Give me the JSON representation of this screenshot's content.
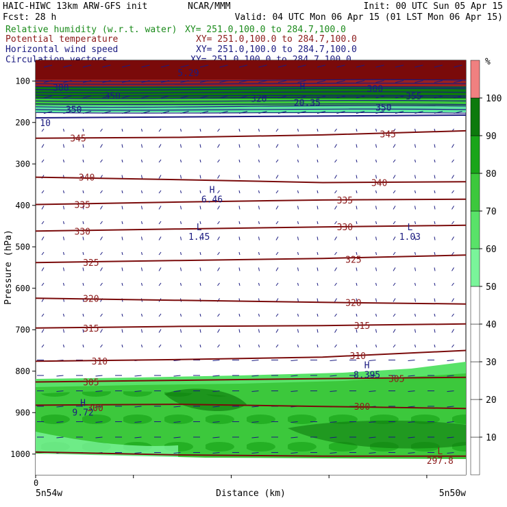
{
  "header": {
    "model_line": "HAIC-HIWC 13km ARW-GFS init",
    "org": "NCAR/MMM",
    "init": "Init: 00 UTC Sun 05 Apr 15",
    "fcst": "Fcst:    28 h",
    "valid": "Valid: 04 UTC Mon 06 Apr 15 (01 LST Mon 06 Apr 15)"
  },
  "fields": [
    {
      "name": "Relative humidity (w.r.t. water)",
      "xy": "XY= 251.0,100.0 to 284.7,100.0",
      "color": "#1a8a1a"
    },
    {
      "name": "Potential temperature",
      "xy": "XY= 251.0,100.0 to 284.7,100.0",
      "color": "#8b1a1a"
    },
    {
      "name": "Horizontal wind speed",
      "xy": "XY= 251.0,100.0 to 284.7,100.0",
      "color": "#1a1a80"
    },
    {
      "name": "Circulation vectors",
      "xy": "XY= 251.0,100.0 to 284.7,100.0",
      "color": "#1a1a80"
    }
  ],
  "chart_data": {
    "type": "contour",
    "ylabel": "Pressure (hPa)",
    "xlabel": "Distance (km)",
    "yticks": [
      100,
      200,
      300,
      400,
      500,
      600,
      700,
      800,
      900,
      1000
    ],
    "ylim": [
      50,
      1050
    ],
    "y_scale": "linear",
    "x_tick_label": "0",
    "x_start_label": "5n54w",
    "x_end_label": "5n50w",
    "colorbar": {
      "unit": "%",
      "levels": [
        10,
        20,
        30,
        40,
        50,
        60,
        70,
        80,
        90,
        100
      ],
      "fill_colors": [
        "#ffffff",
        "#ffffff",
        "#ffffff",
        "#ffffff",
        "#ffffff",
        "#7af59a",
        "#59e269",
        "#3cc83c",
        "#1aa51a",
        "#0d7a0d",
        "#f08080"
      ]
    },
    "theta_contours": [
      {
        "value": "345",
        "pressure": [
          238,
          236,
          230,
          220
        ]
      },
      {
        "value": "340",
        "pressure": [
          332,
          338,
          345,
          343
        ]
      },
      {
        "value": "335",
        "pressure": [
          398,
          392,
          387,
          385
        ]
      },
      {
        "value": "330",
        "pressure": [
          462,
          457,
          452,
          448
        ]
      },
      {
        "value": "325",
        "pressure": [
          538,
          533,
          528,
          520
        ]
      },
      {
        "value": "320",
        "pressure": [
          624,
          629,
          634,
          638
        ]
      },
      {
        "value": "315",
        "pressure": [
          696,
          692,
          690,
          686
        ]
      },
      {
        "value": "310",
        "pressure": [
          776,
          772,
          766,
          750
        ]
      },
      {
        "value": "305",
        "pressure": [
          826,
          822,
          818,
          815
        ]
      },
      {
        "value": "300",
        "pressure": [
          882,
          880,
          885,
          890
        ]
      },
      {
        "value": "",
        "pressure": [
          995,
          1002,
          1005,
          1005
        ]
      }
    ],
    "contour_labels": [
      {
        "text": "345",
        "x_frac": 0.08,
        "p": 238,
        "color": "#8b1a1a"
      },
      {
        "text": "345",
        "x_frac": 0.8,
        "p": 228,
        "color": "#8b1a1a"
      },
      {
        "text": "340",
        "x_frac": 0.1,
        "p": 332,
        "color": "#8b1a1a"
      },
      {
        "text": "340",
        "x_frac": 0.78,
        "p": 345,
        "color": "#8b1a1a"
      },
      {
        "text": "335",
        "x_frac": 0.09,
        "p": 398,
        "color": "#8b1a1a"
      },
      {
        "text": "335",
        "x_frac": 0.7,
        "p": 387,
        "color": "#8b1a1a"
      },
      {
        "text": "330",
        "x_frac": 0.09,
        "p": 462,
        "color": "#8b1a1a"
      },
      {
        "text": "330",
        "x_frac": 0.7,
        "p": 452,
        "color": "#8b1a1a"
      },
      {
        "text": "325",
        "x_frac": 0.11,
        "p": 538,
        "color": "#8b1a1a"
      },
      {
        "text": "325",
        "x_frac": 0.72,
        "p": 530,
        "color": "#8b1a1a"
      },
      {
        "text": "320",
        "x_frac": 0.11,
        "p": 624,
        "color": "#8b1a1a"
      },
      {
        "text": "320",
        "x_frac": 0.72,
        "p": 634,
        "color": "#8b1a1a"
      },
      {
        "text": "315",
        "x_frac": 0.11,
        "p": 696,
        "color": "#8b1a1a"
      },
      {
        "text": "315",
        "x_frac": 0.74,
        "p": 690,
        "color": "#8b1a1a"
      },
      {
        "text": "310",
        "x_frac": 0.13,
        "p": 776,
        "color": "#8b1a1a"
      },
      {
        "text": "310",
        "x_frac": 0.73,
        "p": 762,
        "color": "#8b1a1a"
      },
      {
        "text": "305",
        "x_frac": 0.11,
        "p": 826,
        "color": "#8b1a1a"
      },
      {
        "text": "305",
        "x_frac": 0.82,
        "p": 818,
        "color": "#8b1a1a"
      },
      {
        "text": "300",
        "x_frac": 0.12,
        "p": 888,
        "color": "#8b1a1a"
      },
      {
        "text": "300",
        "x_frac": 0.74,
        "p": 885,
        "color": "#8b1a1a"
      },
      {
        "text": "300",
        "x_frac": 0.04,
        "p": 115,
        "color": "#1a1a80"
      },
      {
        "text": "350",
        "x_frac": 0.16,
        "p": 135,
        "color": "#1a1a80"
      },
      {
        "text": "320",
        "x_frac": 0.5,
        "p": 142,
        "color": "#1a1a80"
      },
      {
        "text": "300",
        "x_frac": 0.77,
        "p": 118,
        "color": "#1a1a80"
      },
      {
        "text": "355",
        "x_frac": 0.86,
        "p": 136,
        "color": "#1a1a80"
      },
      {
        "text": "350",
        "x_frac": 0.07,
        "p": 168,
        "color": "#1a1a80"
      },
      {
        "text": "350",
        "x_frac": 0.79,
        "p": 163,
        "color": "#1a1a80"
      },
      {
        "text": "10",
        "x_frac": 0.01,
        "p": 200,
        "color": "#1a1a80"
      },
      {
        "text": "5.29",
        "x_frac": 0.33,
        "p": 80,
        "color": "#1a1a80"
      },
      {
        "text": "20.35",
        "x_frac": 0.6,
        "p": 152,
        "color": "#1a1a80"
      }
    ],
    "extrema": [
      {
        "type": "H",
        "value": "6.46",
        "x_frac": 0.41,
        "p": 370,
        "color": "#1a1a80"
      },
      {
        "type": "L",
        "value": "1.45",
        "x_frac": 0.38,
        "p": 460,
        "color": "#1a1a80"
      },
      {
        "type": "L",
        "value": "1.03",
        "x_frac": 0.87,
        "p": 460,
        "color": "#1a1a80"
      },
      {
        "type": "H",
        "value": "8.395",
        "x_frac": 0.77,
        "p": 793,
        "color": "#1a1a80"
      },
      {
        "type": "H",
        "value": "9.72",
        "x_frac": 0.11,
        "p": 884,
        "color": "#1a1a80"
      },
      {
        "type": "H",
        "value": "",
        "x_frac": 0.62,
        "p": 120,
        "color": "#1a1a80"
      },
      {
        "type": "L",
        "value": "297.8",
        "x_frac": 0.94,
        "p": 1000,
        "color": "#8b1a1a"
      }
    ]
  }
}
